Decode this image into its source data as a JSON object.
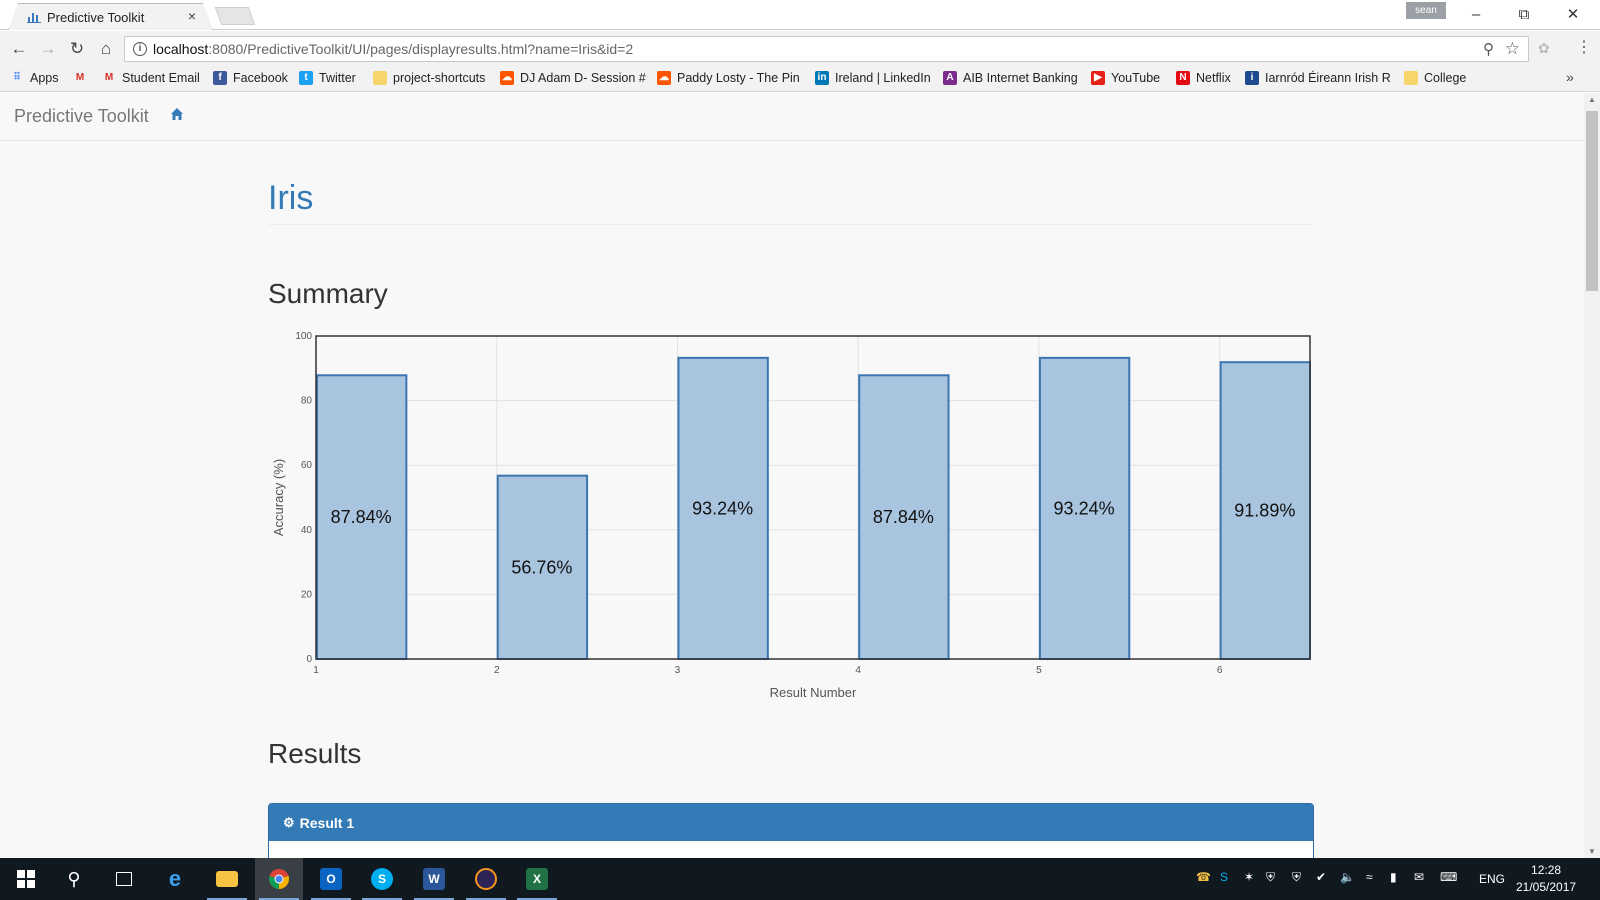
{
  "browser": {
    "tab_title": "Predictive Toolkit",
    "tab_close": "×",
    "profile_name": "sean",
    "url_host": "localhost",
    "url_rest": ":8080/PredictiveToolkit/UI/pages/displayresults.html?name=Iris&id=2"
  },
  "bookmarks": [
    {
      "label": "Apps",
      "icon": "apps-grid-icon",
      "color": "#4285f4"
    },
    {
      "label": "",
      "icon": "gmail-icon",
      "color": "#d93025"
    },
    {
      "label": "Student Email",
      "icon": "gmail-icon",
      "color": "#d93025"
    },
    {
      "label": "Facebook",
      "icon": "facebook-icon",
      "color": "#3b5998"
    },
    {
      "label": "Twitter",
      "icon": "twitter-icon",
      "color": "#1da1f2"
    },
    {
      "label": "project-shortcuts",
      "icon": "folder-icon",
      "color": "#f6d56a"
    },
    {
      "label": "DJ Adam D- Session #",
      "icon": "soundcloud-icon",
      "color": "#ff5500"
    },
    {
      "label": "Paddy Losty - The Pin",
      "icon": "soundcloud-icon",
      "color": "#ff5500"
    },
    {
      "label": "Ireland | LinkedIn",
      "icon": "linkedin-icon",
      "color": "#0077b5"
    },
    {
      "label": "AIB Internet Banking",
      "icon": "aib-icon",
      "color": "#7b2c8c"
    },
    {
      "label": "YouTube",
      "icon": "youtube-icon",
      "color": "#e62117"
    },
    {
      "label": "Netflix",
      "icon": "netflix-icon",
      "color": "#e50914"
    },
    {
      "label": "Iarnród Éireann Irish R",
      "icon": "irish-rail-icon",
      "color": "#1e4b8f"
    },
    {
      "label": "College",
      "icon": "folder-icon",
      "color": "#f6d56a"
    }
  ],
  "app": {
    "brand": "Predictive Toolkit",
    "page_title": "Iris",
    "summary_heading": "Summary",
    "results_heading": "Results",
    "result_panel_title": "Result 1"
  },
  "chart_data": {
    "type": "bar",
    "categories": [
      "1",
      "2",
      "3",
      "4",
      "5",
      "6"
    ],
    "values": [
      87.84,
      56.76,
      93.24,
      87.84,
      93.24,
      91.89
    ],
    "data_labels": [
      "87.84%",
      "56.76%",
      "93.24%",
      "87.84%",
      "93.24%",
      "91.89%"
    ],
    "xlabel": "Result Number",
    "ylabel": "Accuracy (%)",
    "ylim": [
      0,
      100
    ],
    "yticks": [
      "0",
      "20",
      "40",
      "60",
      "80",
      "100"
    ],
    "grid": true,
    "bar_fill": "#a8c4df",
    "bar_stroke": "#3a75b0"
  },
  "taskbar": {
    "lang": "ENG",
    "time": "12:28",
    "date": "21/05/2017"
  }
}
